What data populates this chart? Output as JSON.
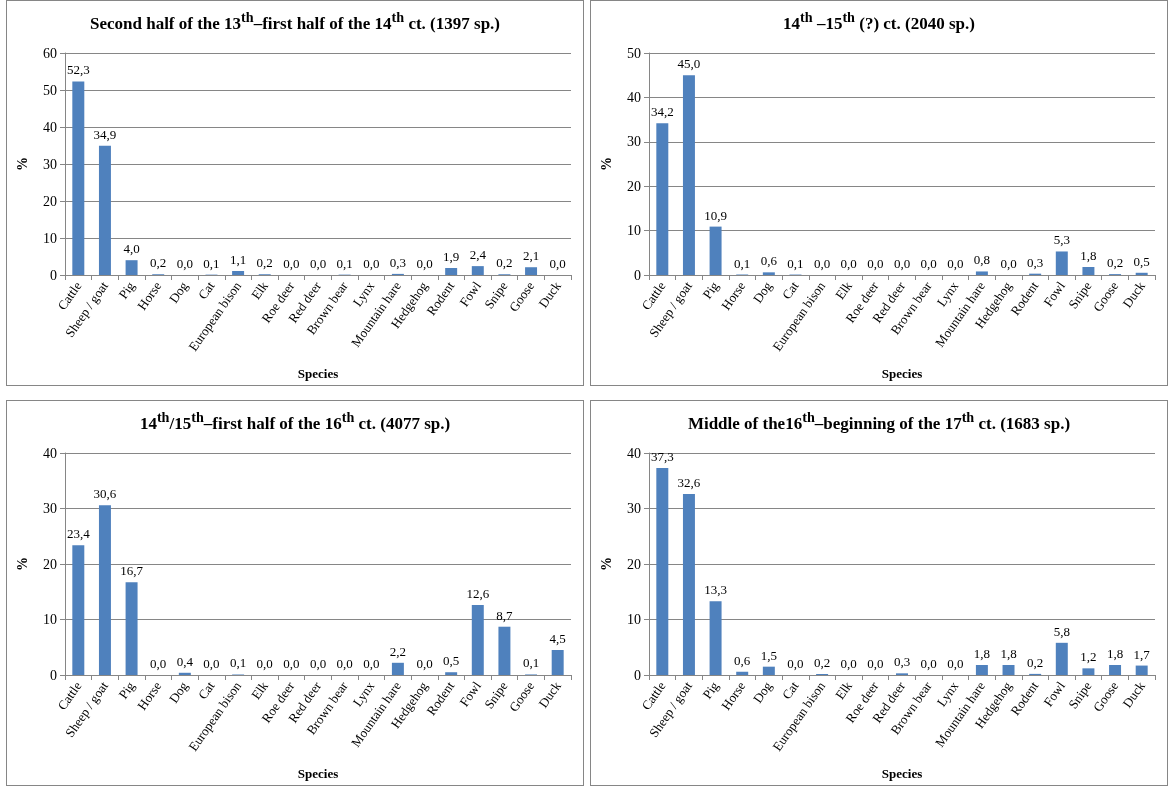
{
  "chart_data": [
    {
      "type": "bar",
      "title": "Second half of the 13$^{th}$–first half of the 14$^{th}$ ct. (1397 sp.)",
      "xlabel": "Species",
      "ylabel": "%",
      "categories": [
        "Cattle",
        "Sheep / goat",
        "Pig",
        "Horse",
        "Dog",
        "Cat",
        "European bison",
        "Elk",
        "Roe deer",
        "Red deer",
        "Brown bear",
        "Lynx",
        "Mountain hare",
        "Hedgehog",
        "Rodent",
        "Fowl",
        "Snipe",
        "Goose",
        "Duck"
      ],
      "values": [
        52.3,
        34.9,
        4.0,
        0.2,
        0.0,
        0.1,
        1.1,
        0.2,
        0.0,
        0.0,
        0.1,
        0.0,
        0.3,
        0.0,
        1.9,
        2.4,
        0.2,
        2.1,
        0.0
      ],
      "value_labels": [
        "52,3",
        "34,9",
        "4,0",
        "0,2",
        "0,0",
        "0,1",
        "1,1",
        "0,2",
        "0,0",
        "0,0",
        "0,1",
        "0,0",
        "0,3",
        "0,0",
        "1,9",
        "2,4",
        "0,2",
        "2,1",
        "0,0"
      ],
      "color": "#4f81bd",
      "ylim": [
        0,
        60
      ],
      "yticks": [
        0,
        10,
        20,
        30,
        40,
        50,
        60
      ],
      "grid": "y"
    },
    {
      "type": "bar",
      "title": "14$^{th}$ –15$^{th}$ (?) ct. (2040 sp.)",
      "xlabel": "Species",
      "ylabel": "%",
      "categories": [
        "Cattle",
        "Sheep / goat",
        "Pig",
        "Horse",
        "Dog",
        "Cat",
        "European bison",
        "Elk",
        "Roe deer",
        "Red deer",
        "Brown bear",
        "Lynx",
        "Mountain hare",
        "Hedgehog",
        "Rodent",
        "Fowl",
        "Snipe",
        "Goose",
        "Duck"
      ],
      "values": [
        34.2,
        45.0,
        10.9,
        0.1,
        0.6,
        0.1,
        0.0,
        0.0,
        0.0,
        0.0,
        0.0,
        0.0,
        0.8,
        0.0,
        0.3,
        5.3,
        1.8,
        0.2,
        0.5
      ],
      "value_labels": [
        "34,2",
        "45,0",
        "10,9",
        "0,1",
        "0,6",
        "0,1",
        "0,0",
        "0,0",
        "0,0",
        "0,0",
        "0,0",
        "0,0",
        "0,8",
        "0,0",
        "0,3",
        "5,3",
        "1,8",
        "0,2",
        "0,5"
      ],
      "color": "#4f81bd",
      "ylim": [
        0,
        50
      ],
      "yticks": [
        0,
        10,
        20,
        30,
        40,
        50
      ],
      "grid": "y"
    },
    {
      "type": "bar",
      "title": "14$^{th}$/15$^{th}$–first half of the 16$^{th}$ ct. (4077 sp.)",
      "xlabel": "Species",
      "ylabel": "%",
      "categories": [
        "Cattle",
        "Sheep / goat",
        "Pig",
        "Horse",
        "Dog",
        "Cat",
        "European bison",
        "Elk",
        "Roe deer",
        "Red deer",
        "Brown bear",
        "Lynx",
        "Mountain hare",
        "Hedgehog",
        "Rodent",
        "Fowl",
        "Snipe",
        "Goose",
        "Duck"
      ],
      "values": [
        23.4,
        30.6,
        16.7,
        0.0,
        0.4,
        0.0,
        0.1,
        0.0,
        0.0,
        0.0,
        0.0,
        0.0,
        2.2,
        0.0,
        0.5,
        12.6,
        8.7,
        0.1,
        4.5
      ],
      "value_labels": [
        "23,4",
        "30,6",
        "16,7",
        "0,0",
        "0,4",
        "0,0",
        "0,1",
        "0,0",
        "0,0",
        "0,0",
        "0,0",
        "0,0",
        "2,2",
        "0,0",
        "0,5",
        "12,6",
        "8,7",
        "0,1",
        "4,5"
      ],
      "color": "#4f81bd",
      "ylim": [
        0,
        40
      ],
      "yticks": [
        0,
        10,
        20,
        30,
        40
      ],
      "grid": "y"
    },
    {
      "type": "bar",
      "title": "Middle of the16$^{th}$–beginning of the 17$^{th}$ ct. (1683 sp.)",
      "xlabel": "Species",
      "ylabel": "%",
      "categories": [
        "Cattle",
        "Sheep / goat",
        "Pig",
        "Horse",
        "Dog",
        "Cat",
        "European bison",
        "Elk",
        "Roe deer",
        "Red deer",
        "Brown bear",
        "Lynx",
        "Mountain hare",
        "Hedgehog",
        "Rodent",
        "Fowl",
        "Snipe",
        "Goose",
        "Duck"
      ],
      "values": [
        37.3,
        32.6,
        13.3,
        0.6,
        1.5,
        0.0,
        0.2,
        0.0,
        0.0,
        0.3,
        0.0,
        0.0,
        1.8,
        1.8,
        0.2,
        5.8,
        1.2,
        1.8,
        1.7
      ],
      "value_labels": [
        "37,3",
        "32,6",
        "13,3",
        "0,6",
        "1,5",
        "0,0",
        "0,2",
        "0,0",
        "0,0",
        "0,3",
        "0,0",
        "0,0",
        "1,8",
        "1,8",
        "0,2",
        "5,8",
        "1,2",
        "1,8",
        "1,7"
      ],
      "color": "#4f81bd",
      "ylim": [
        0,
        40
      ],
      "yticks": [
        0,
        10,
        20,
        30,
        40
      ],
      "grid": "y"
    }
  ]
}
